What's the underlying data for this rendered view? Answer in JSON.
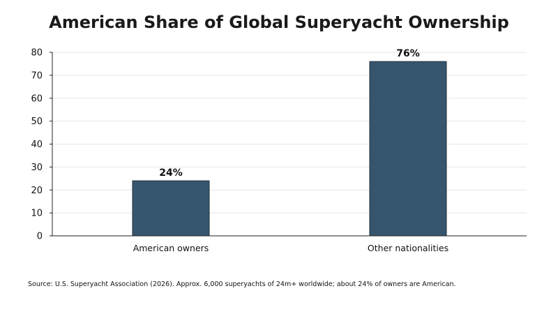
{
  "chart_data": {
    "type": "bar",
    "title": "American Share of Global Superyacht Ownership",
    "categories": [
      "American owners",
      "Other nationalities"
    ],
    "values": [
      24,
      76
    ],
    "data_labels": [
      "24%",
      "76%"
    ],
    "xlabel": "",
    "ylabel": "",
    "ylim": [
      0,
      80
    ],
    "yticks": [
      0,
      10,
      20,
      30,
      40,
      50,
      60,
      70,
      80
    ],
    "grid": true,
    "bar_color": "#36566f",
    "source": "Source: U.S. Superyacht Association (2026). Approx. 6,000 superyachts of 24m+ worldwide; about 24% of owners are American."
  }
}
